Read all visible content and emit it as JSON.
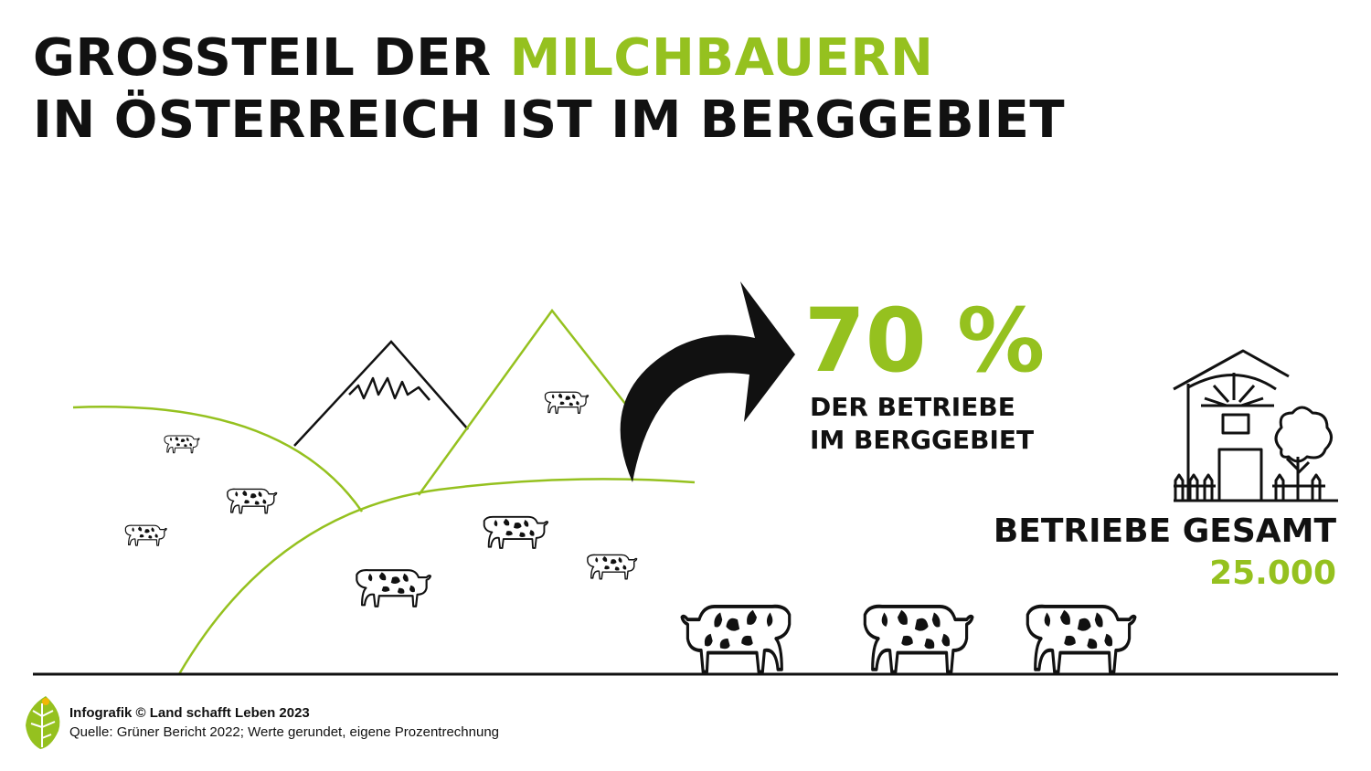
{
  "header": {
    "title_part1": "GROSSTEIL DER ",
    "title_highlight": "MILCHBAUERN",
    "title_line2": "IN ÖSTERREICH IST IM BERGGEBIET"
  },
  "stat": {
    "percent": "70 %",
    "caption_line1": "DER BETRIEBE",
    "caption_line2": "IM BERGGEBIET"
  },
  "total": {
    "label": "BETRIEBE GESAMT",
    "value": "25.000"
  },
  "footer": {
    "credit": "Infografik © Land schafft Leben 2023",
    "source": "Quelle: Grüner Bericht 2022; Werte gerundet, eigene Prozentrechnung"
  },
  "colors": {
    "accent": "#95c11f",
    "text": "#111111"
  },
  "icons": [
    "arrow-icon",
    "farm-house-icon",
    "tree-icon",
    "cow-icon",
    "leaf-logo-icon"
  ]
}
